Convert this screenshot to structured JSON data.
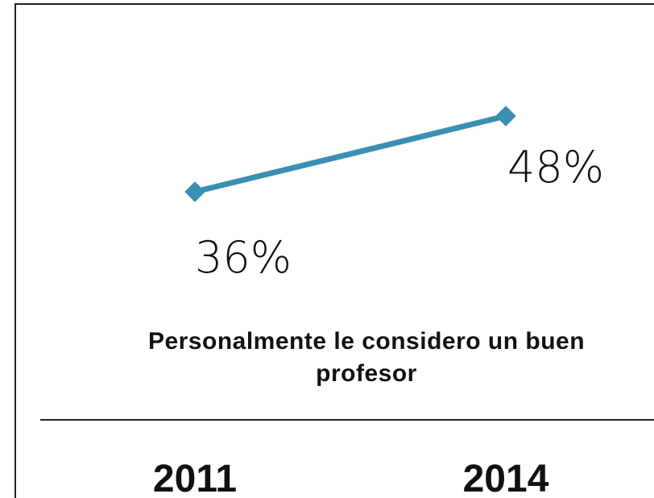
{
  "chart_data": {
    "type": "line",
    "title": "Personalmente le considero un buen profesor",
    "categories": [
      "2011",
      "2014"
    ],
    "series": [
      {
        "name": null,
        "color": "#3a8fb2",
        "values": [
          36,
          48
        ],
        "value_labels": [
          "36%",
          "48%"
        ]
      }
    ]
  }
}
